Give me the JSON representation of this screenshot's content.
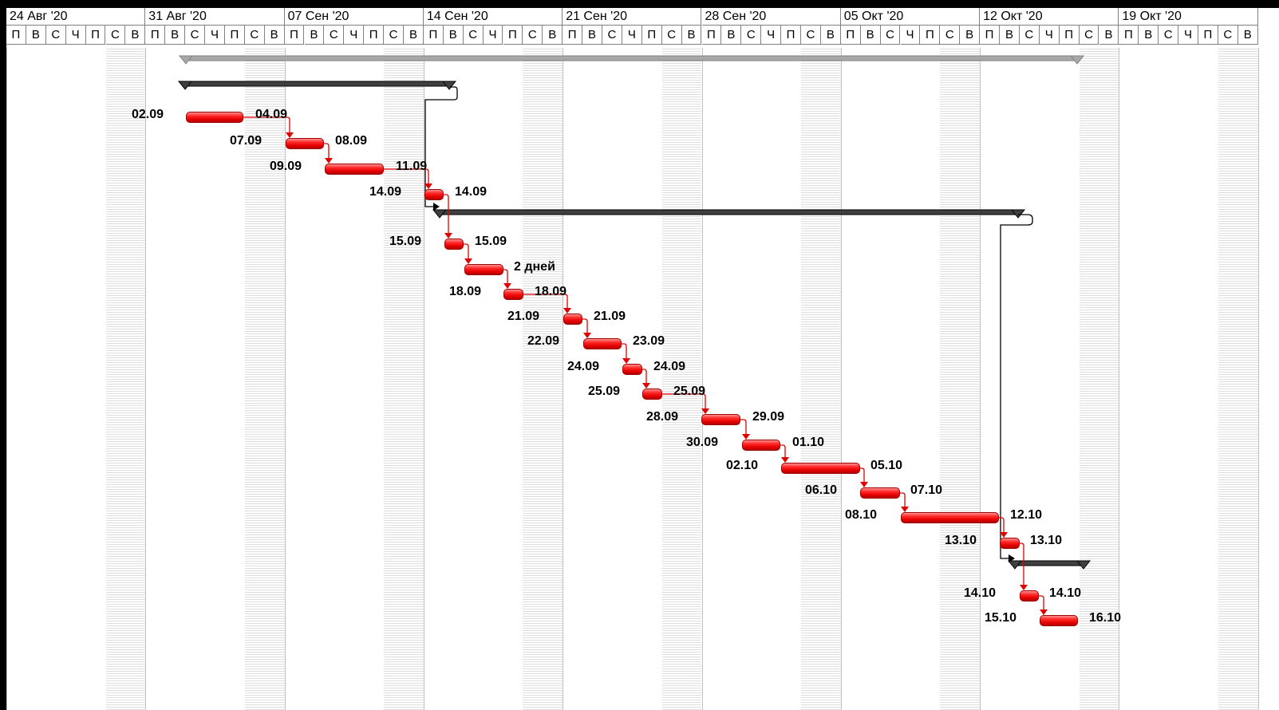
{
  "header": {
    "weeks": [
      "24 Авг '20",
      "31 Авг '20",
      "07 Сен '20",
      "14 Сен '20",
      "21 Сен '20",
      "28 Сен '20",
      "05 Окт '20",
      "12 Окт '20",
      "19 Окт '20"
    ],
    "day_letters": [
      "П",
      "В",
      "С",
      "Ч",
      "П",
      "С",
      "В"
    ]
  },
  "colors": {
    "task_bar": "#e60000",
    "summary_bar": "#404040",
    "project_summary_bar": "#a8a8a8",
    "link_red": "#e00000",
    "link_black": "#000000"
  },
  "tasks": [
    {
      "start": "02.09",
      "end": "04.09"
    },
    {
      "start": "07.09",
      "end": "08.09"
    },
    {
      "start": "09.09",
      "end": "11.09"
    },
    {
      "start": "14.09",
      "end": "14.09"
    },
    {
      "start": "15.09",
      "end": "15.09"
    },
    {
      "start": "",
      "end": "2 дней"
    },
    {
      "start": "18.09",
      "end": "18.09"
    },
    {
      "start": "21.09",
      "end": "21.09"
    },
    {
      "start": "22.09",
      "end": "23.09"
    },
    {
      "start": "24.09",
      "end": "24.09"
    },
    {
      "start": "25.09",
      "end": "25.09"
    },
    {
      "start": "28.09",
      "end": "29.09"
    },
    {
      "start": "30.09",
      "end": "01.10"
    },
    {
      "start": "02.10",
      "end": "05.10"
    },
    {
      "start": "06.10",
      "end": "07.10"
    },
    {
      "start": "08.10",
      "end": "12.10"
    },
    {
      "start": "13.10",
      "end": "13.10"
    },
    {
      "start": "14.10",
      "end": "14.10"
    },
    {
      "start": "15.10",
      "end": "16.10"
    }
  ]
}
